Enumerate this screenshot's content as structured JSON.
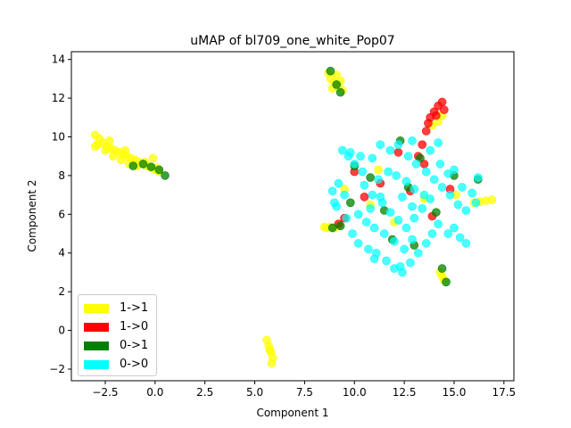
{
  "chart_data": {
    "type": "scatter",
    "title": "uMAP of bl709_one_white_Pop07",
    "xlabel": "Component 1",
    "ylabel": "Component 2",
    "xlim": [
      -4.2,
      18.0
    ],
    "ylim": [
      -2.6,
      14.4
    ],
    "xticks": [
      -2.5,
      0.0,
      2.5,
      5.0,
      7.5,
      10.0,
      12.5,
      15.0,
      17.5
    ],
    "xtick_labels": [
      "−2.5",
      "0.0",
      "2.5",
      "5.0",
      "7.5",
      "10.0",
      "12.5",
      "15.0",
      "17.5"
    ],
    "yticks": [
      -2,
      0,
      2,
      4,
      6,
      8,
      10,
      12,
      14
    ],
    "ytick_labels": [
      "−2",
      "0",
      "2",
      "4",
      "6",
      "8",
      "10",
      "12",
      "14"
    ],
    "grid": false,
    "legend_position": "lower-left",
    "legend": [
      {
        "label": "1->1",
        "color": "#ffff00"
      },
      {
        "label": "1->0",
        "color": "#ff0000"
      },
      {
        "label": "0->1",
        "color": "#008000"
      },
      {
        "label": "0->0",
        "color": "#00ffff"
      }
    ],
    "series": [
      {
        "name": "1->1",
        "color": "#ffff00",
        "points": [
          [
            -3.0,
            10.1
          ],
          [
            -2.8,
            9.9
          ],
          [
            -2.6,
            9.7
          ],
          [
            -2.4,
            9.5
          ],
          [
            -2.2,
            9.4
          ],
          [
            -2.0,
            9.3
          ],
          [
            -1.8,
            9.2
          ],
          [
            -1.6,
            9.1
          ],
          [
            -1.4,
            9.0
          ],
          [
            -1.2,
            8.9
          ],
          [
            -1.0,
            8.8
          ],
          [
            -0.8,
            8.7
          ],
          [
            -0.6,
            8.6
          ],
          [
            -0.4,
            8.5
          ],
          [
            -0.2,
            8.4
          ],
          [
            0.0,
            8.3
          ],
          [
            0.2,
            8.2
          ],
          [
            -2.9,
            9.6
          ],
          [
            -2.5,
            9.3
          ],
          [
            -2.1,
            9.0
          ],
          [
            -1.7,
            8.8
          ],
          [
            -1.3,
            8.6
          ],
          [
            -0.9,
            8.5
          ],
          [
            -0.5,
            8.7
          ],
          [
            -0.1,
            8.9
          ],
          [
            0.1,
            8.4
          ],
          [
            -3.0,
            9.5
          ],
          [
            -2.3,
            9.8
          ],
          [
            -1.5,
            9.3
          ],
          [
            5.6,
            -0.5
          ],
          [
            5.7,
            -0.8
          ],
          [
            5.8,
            -1.1
          ],
          [
            5.9,
            -1.4
          ],
          [
            5.85,
            -1.7
          ],
          [
            5.75,
            -1.0
          ],
          [
            8.7,
            13.3
          ],
          [
            8.8,
            13.0
          ],
          [
            9.0,
            12.8
          ],
          [
            9.2,
            12.6
          ],
          [
            9.4,
            12.4
          ],
          [
            9.1,
            13.2
          ],
          [
            8.9,
            12.5
          ],
          [
            9.3,
            12.9
          ],
          [
            8.6,
            5.3
          ],
          [
            8.8,
            5.35
          ],
          [
            9.0,
            5.3
          ],
          [
            9.2,
            5.4
          ],
          [
            8.5,
            5.35
          ],
          [
            14.3,
            3.0
          ],
          [
            14.4,
            2.8
          ],
          [
            14.5,
            2.6
          ],
          [
            16.0,
            6.6
          ],
          [
            16.3,
            6.65
          ],
          [
            16.6,
            6.7
          ],
          [
            16.9,
            6.75
          ],
          [
            14.2,
            10.8
          ],
          [
            14.4,
            11.1
          ],
          [
            13.9,
            10.6
          ],
          [
            9.5,
            7.3
          ],
          [
            10.8,
            6.5
          ],
          [
            12.0,
            5.6
          ],
          [
            13.5,
            6.8
          ],
          [
            11.2,
            8.3
          ],
          [
            15.1,
            7.0
          ]
        ]
      },
      {
        "name": "1->0",
        "color": "#ff0000",
        "points": [
          [
            13.8,
            11.0
          ],
          [
            14.0,
            11.3
          ],
          [
            14.2,
            11.6
          ],
          [
            14.4,
            11.8
          ],
          [
            14.1,
            11.1
          ],
          [
            13.7,
            10.7
          ],
          [
            14.5,
            11.4
          ],
          [
            13.6,
            10.3
          ],
          [
            13.4,
            9.6
          ],
          [
            13.2,
            9.0
          ],
          [
            13.5,
            8.6
          ],
          [
            9.2,
            5.5
          ],
          [
            9.5,
            5.8
          ],
          [
            10.0,
            8.2
          ],
          [
            11.3,
            7.6
          ],
          [
            12.8,
            7.2
          ],
          [
            13.9,
            5.9
          ],
          [
            10.5,
            6.9
          ],
          [
            12.2,
            9.2
          ],
          [
            14.8,
            7.3
          ]
        ]
      },
      {
        "name": "0->1",
        "color": "#008000",
        "points": [
          [
            -1.1,
            8.5
          ],
          [
            -0.6,
            8.6
          ],
          [
            0.2,
            8.3
          ],
          [
            0.5,
            8.0
          ],
          [
            -0.2,
            8.45
          ],
          [
            8.8,
            13.4
          ],
          [
            9.1,
            12.7
          ],
          [
            9.3,
            12.3
          ],
          [
            8.9,
            5.3
          ],
          [
            9.3,
            5.4
          ],
          [
            10.0,
            8.5
          ],
          [
            10.8,
            7.9
          ],
          [
            12.3,
            9.8
          ],
          [
            13.0,
            4.4
          ],
          [
            14.4,
            3.2
          ],
          [
            14.6,
            2.5
          ],
          [
            16.2,
            7.8
          ],
          [
            15.0,
            8.0
          ],
          [
            11.5,
            6.2
          ],
          [
            12.7,
            7.4
          ],
          [
            13.3,
            8.9
          ],
          [
            9.8,
            6.6
          ],
          [
            11.9,
            4.7
          ],
          [
            14.1,
            6.1
          ]
        ]
      },
      {
        "name": "0->0",
        "color": "#00ffff",
        "points": [
          [
            9.4,
            9.3
          ],
          [
            9.7,
            9.0
          ],
          [
            10.0,
            8.6
          ],
          [
            10.4,
            8.2
          ],
          [
            10.9,
            8.9
          ],
          [
            11.3,
            9.6
          ],
          [
            11.8,
            9.3
          ],
          [
            12.2,
            9.6
          ],
          [
            12.7,
            9.0
          ],
          [
            13.1,
            8.6
          ],
          [
            13.6,
            8.2
          ],
          [
            14.0,
            7.8
          ],
          [
            14.4,
            7.4
          ],
          [
            14.8,
            7.0
          ],
          [
            15.2,
            6.5
          ],
          [
            15.6,
            6.2
          ],
          [
            15.0,
            5.3
          ],
          [
            15.3,
            4.8
          ],
          [
            15.6,
            4.5
          ],
          [
            14.7,
            5.0
          ],
          [
            9.1,
            6.4
          ],
          [
            9.6,
            5.8
          ],
          [
            9.9,
            5.0
          ],
          [
            10.2,
            4.5
          ],
          [
            10.7,
            4.2
          ],
          [
            11.1,
            4.0
          ],
          [
            11.6,
            3.6
          ],
          [
            12.0,
            3.2
          ],
          [
            12.4,
            3.0
          ],
          [
            12.8,
            3.5
          ],
          [
            13.2,
            4.0
          ],
          [
            13.6,
            4.5
          ],
          [
            13.9,
            5.0
          ],
          [
            14.2,
            5.5
          ],
          [
            10.5,
            7.5
          ],
          [
            10.9,
            7.0
          ],
          [
            11.4,
            6.6
          ],
          [
            11.8,
            6.1
          ],
          [
            12.2,
            5.7
          ],
          [
            12.6,
            5.3
          ],
          [
            13.0,
            5.8
          ],
          [
            13.4,
            6.3
          ],
          [
            13.8,
            6.8
          ],
          [
            11.0,
            5.3
          ],
          [
            11.5,
            5.0
          ],
          [
            12.0,
            4.6
          ],
          [
            12.5,
            4.2
          ],
          [
            12.9,
            4.7
          ],
          [
            11.2,
            7.8
          ],
          [
            11.7,
            8.2
          ],
          [
            12.1,
            8.0
          ],
          [
            12.6,
            7.7
          ],
          [
            13.0,
            7.3
          ],
          [
            13.5,
            7.0
          ],
          [
            10.2,
            6.0
          ],
          [
            10.6,
            5.6
          ],
          [
            9.5,
            7.0
          ],
          [
            9.2,
            7.6
          ],
          [
            12.9,
            6.4
          ],
          [
            11.3,
            6.9
          ],
          [
            12.4,
            6.9
          ],
          [
            10.8,
            6.3
          ],
          [
            14.3,
            8.6
          ],
          [
            14.7,
            8.1
          ],
          [
            15.4,
            7.4
          ],
          [
            15.9,
            7.1
          ],
          [
            16.2,
            7.9
          ],
          [
            16.1,
            6.6
          ],
          [
            15.0,
            8.3
          ],
          [
            13.8,
            9.3
          ],
          [
            14.2,
            9.7
          ],
          [
            12.9,
            9.8
          ],
          [
            10.3,
            9.0
          ],
          [
            9.8,
            9.2
          ],
          [
            8.9,
            7.2
          ],
          [
            9.0,
            6.6
          ],
          [
            11.0,
            3.7
          ],
          [
            12.3,
            3.3
          ]
        ]
      }
    ]
  }
}
